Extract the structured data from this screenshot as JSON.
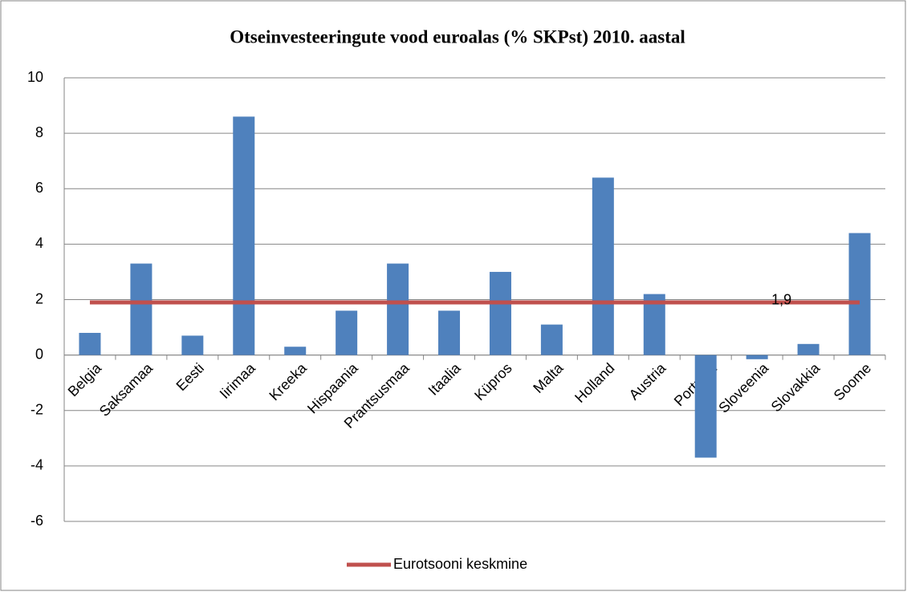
{
  "chart_data": {
    "type": "bar",
    "title": "Otseinvesteeringute vood euroalas (% SKPst) 2010. aastal",
    "categories": [
      "Belgia",
      "Saksamaa",
      "Eesti",
      "Iirimaa",
      "Kreeka",
      "Hispaania",
      "Prantsusmaa",
      "Itaalia",
      "Küpros",
      "Malta",
      "Holland",
      "Austria",
      "Portugal",
      "Sloveenia",
      "Slovakkia",
      "Soome"
    ],
    "series": [
      {
        "color": "#4f81bd",
        "values": [
          0.8,
          3.3,
          0.7,
          8.6,
          0.3,
          1.6,
          3.3,
          1.6,
          3.0,
          1.1,
          6.4,
          2.2,
          -3.7,
          -0.15,
          0.4,
          4.4
        ]
      },
      {
        "name": "Eurotsooni keskmine",
        "type": "line",
        "color": "#c0504d",
        "values": [
          1.9,
          1.9,
          1.9,
          1.9,
          1.9,
          1.9,
          1.9,
          1.9,
          1.9,
          1.9,
          1.9,
          1.9,
          1.9,
          1.9,
          1.9,
          1.9
        ],
        "value_labels": [
          null,
          null,
          null,
          null,
          null,
          null,
          null,
          null,
          null,
          null,
          null,
          null,
          null,
          "1,9",
          null,
          null
        ]
      }
    ],
    "ylim": [
      -6,
      10
    ],
    "yticks": [
      -6,
      -4,
      -2,
      0,
      2,
      4,
      6,
      8,
      10
    ],
    "grid": true,
    "legend": "bottom"
  }
}
